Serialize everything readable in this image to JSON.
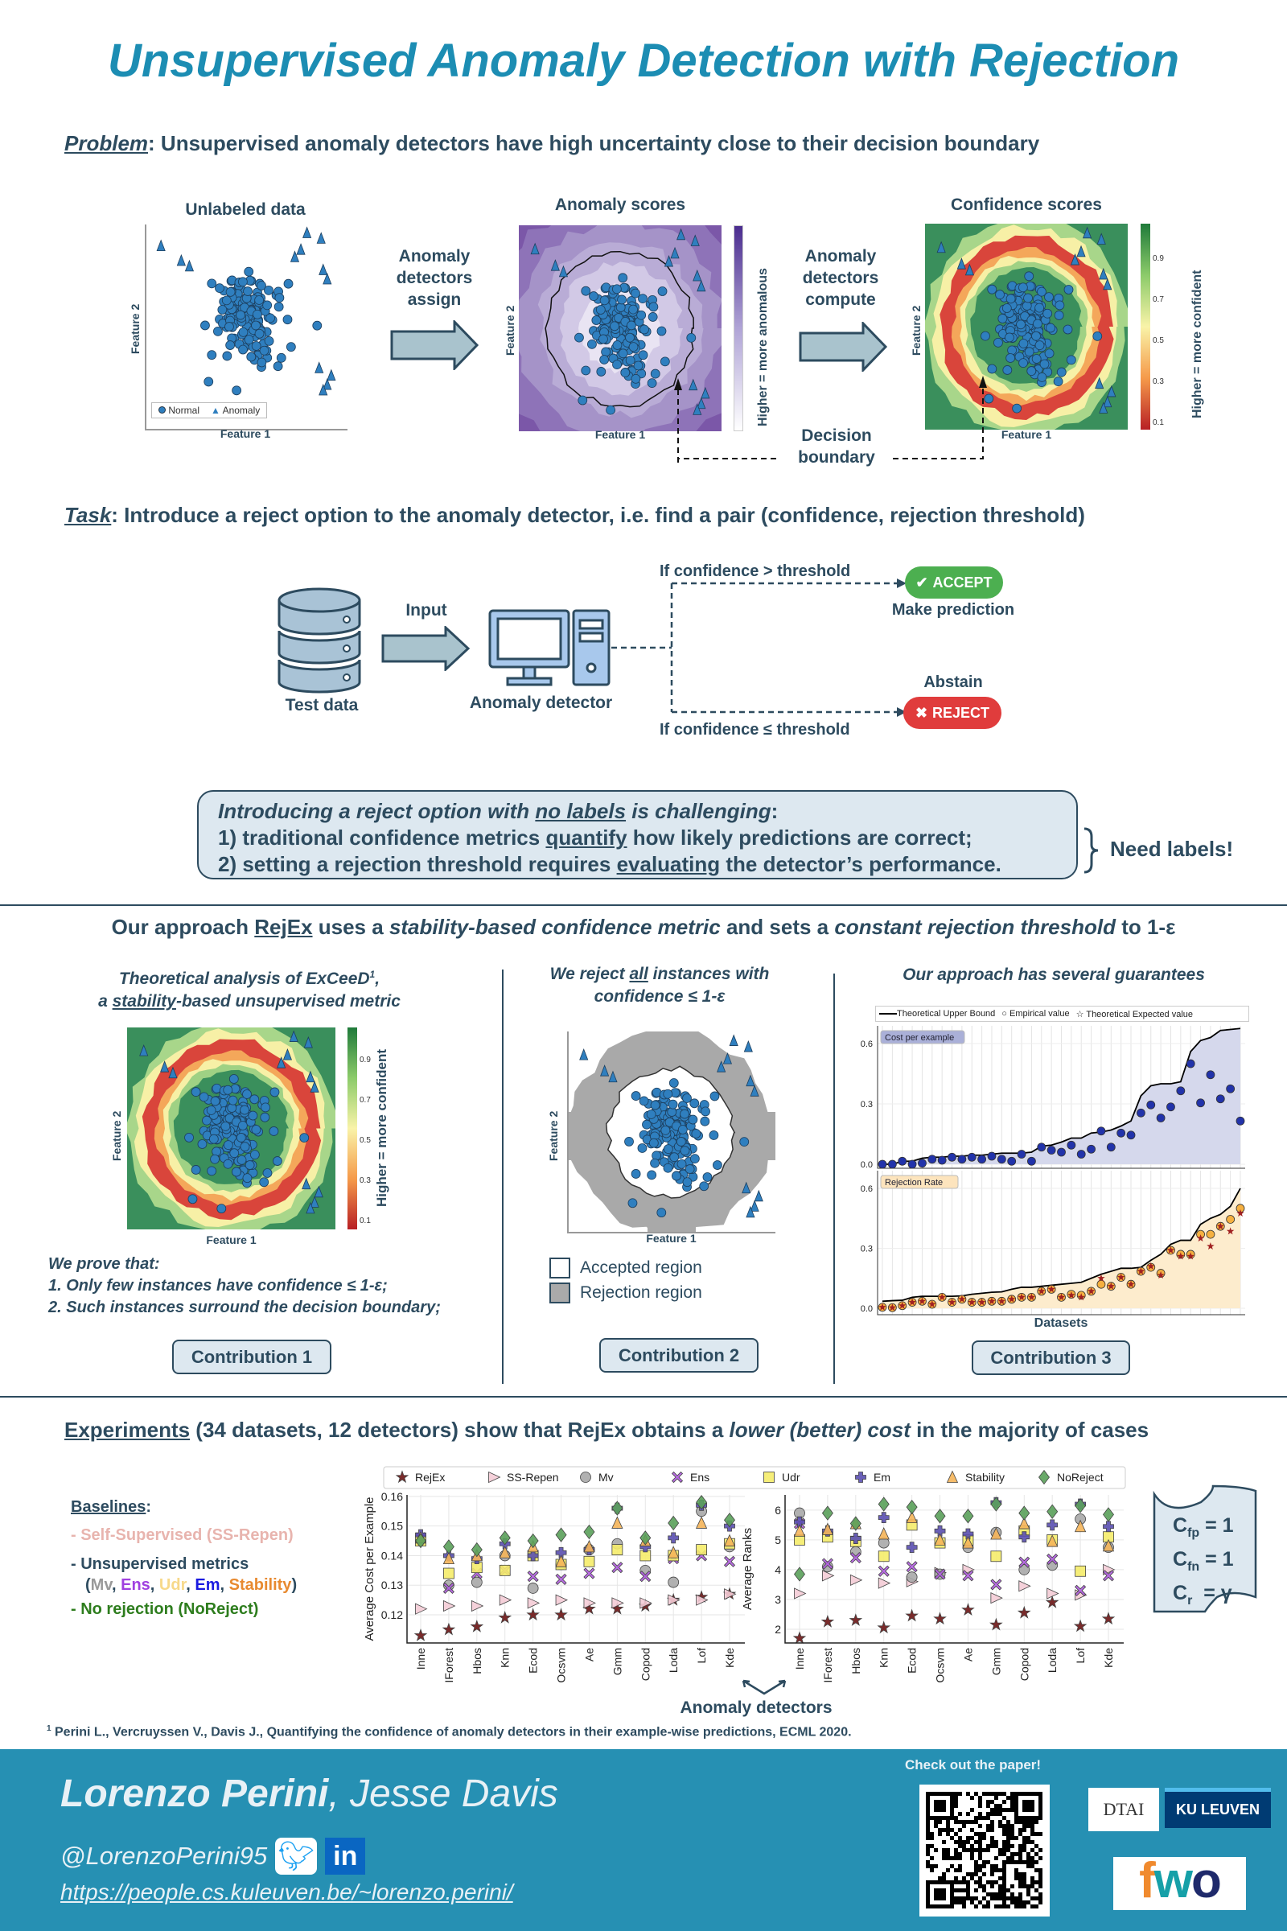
{
  "title": "Unsupervised Anomaly Detection with Rejection",
  "problem": {
    "label": "Problem",
    "text": ": Unsupervised anomaly detectors have high uncertainty close to their decision boundary"
  },
  "fig_unlabeled": {
    "title": "Unlabeled data",
    "xlabel": "Feature 1",
    "ylabel": "Feature 2",
    "legend": [
      "Normal",
      "Anomaly"
    ]
  },
  "arrow_assign": [
    "Anomaly",
    "detectors",
    "assign"
  ],
  "fig_scores": {
    "title": "Anomaly scores",
    "xlabel": "Feature 1",
    "ylabel": "Feature 2",
    "colorbar_label": "Higher = more anomalous"
  },
  "arrow_compute": [
    "Anomaly",
    "detectors",
    "compute"
  ],
  "fig_confidence": {
    "title": "Confidence scores",
    "xlabel": "Feature 1",
    "ylabel": "Feature 2",
    "colorbar_label": "Higher = more confident",
    "colorbar_ticks": [
      "0.9",
      "0.7",
      "0.5",
      "0.3",
      "0.1"
    ]
  },
  "decision_boundary": [
    "Decision",
    "boundary"
  ],
  "task": {
    "label": "Task",
    "text": ": Introduce a reject option to the anomaly detector, i.e. find a pair (confidence, rejection threshold)"
  },
  "diagram": {
    "test_data": "Test data",
    "input": "Input",
    "detector": "Anomaly detector",
    "cond_accept": "If confidence > threshold",
    "accept": "ACCEPT",
    "accept_note": "Make prediction",
    "reject_note": "Abstain",
    "reject": "REJECT",
    "cond_reject": "If confidence ≤ threshold",
    "accept_color": "#4caf50",
    "reject_color": "#e03c3c"
  },
  "challenge": {
    "line1": [
      "Introducing a reject option with ",
      "no labels",
      " is challenging",
      ":"
    ],
    "line2": [
      "1) traditional confidence metrics ",
      "quantify",
      " how likely predictions are correct;"
    ],
    "line3": [
      "2) setting a rejection threshold requires ",
      "evaluating",
      " the detector’s performance."
    ],
    "need_labels": "Need labels!"
  },
  "approach": [
    "Our approach ",
    "RejEx",
    " uses a ",
    "stability-based confidence metric",
    " and sets a ",
    "constant rejection threshold",
    " to 1-ε"
  ],
  "col1": {
    "title1": [
      "Theoretical analysis of ExCeeD",
      "1",
      ","
    ],
    "title2": [
      "a ",
      "stability",
      "-based unsupervised metric"
    ],
    "xlabel": "Feature 1",
    "ylabel": "Feature 2",
    "colorbar_label": "Higher = more confident",
    "colorbar_ticks": [
      "0.9",
      "0.7",
      "0.5",
      "0.3",
      "0.1"
    ],
    "prove": "We prove that:",
    "points": [
      "1. Only few instances have confidence ≤ 1-ε;",
      "2. Such instances surround the decision boundary;"
    ],
    "button": "Contribution 1"
  },
  "col2": {
    "title1": [
      "We reject ",
      "all",
      " instances with"
    ],
    "title2": "confidence ≤ 1-ε",
    "xlabel": "Feature 1",
    "ylabel": "Feature 2",
    "legend": [
      "Accepted region",
      "Rejection region"
    ],
    "button": "Contribution 2"
  },
  "col3": {
    "title": "Our approach has several guarantees",
    "legend": [
      "Theoretical Upper Bound",
      "Empirical value",
      "Theoretical Expected value"
    ],
    "xlabel": "Datasets",
    "button": "Contribution 3"
  },
  "experiments": {
    "headline": [
      "Experiments",
      " (34 datasets, 12 detectors) show that RejEx obtains a ",
      "lower (better) cost",
      " in the majority of cases"
    ],
    "baselines_label": "Baselines",
    "baselines": [
      {
        "text": "- Self-Supervised (SS-Repen)",
        "color": "#e8b4ae"
      },
      {
        "text": "- Unsupervised metrics",
        "color": "#2d4b5f"
      },
      {
        "text": "- No rejection (NoReject)",
        "color": "#2e7d1e"
      }
    ],
    "metrics": [
      {
        "text": "Mv",
        "color": "#999999"
      },
      {
        "text": "Ens",
        "color": "#a040e0"
      },
      {
        "text": "Udr",
        "color": "#f7d98a"
      },
      {
        "text": "Em",
        "color": "#1a1ae0"
      },
      {
        "text": "Stability",
        "color": "#e88a30"
      }
    ],
    "xlabel": "Anomaly detectors",
    "costs": [
      {
        "sym": "C",
        "sub": "fp",
        "val": "= 1"
      },
      {
        "sym": "C",
        "sub": "fn",
        "val": "= 1"
      },
      {
        "sym": "C",
        "sub": "r",
        "val": "= γ"
      }
    ]
  },
  "footnote": {
    "mark": "1",
    "text": " Perini L., Vercruyssen V., Davis J., Quantifying the confidence of anomaly detectors in their example-wise predictions, ECML 2020."
  },
  "footer": {
    "author1": "Lorenzo Perini",
    "author2": ", Jesse Davis",
    "handle": "@LorenzoPerini95",
    "url": "https://people.cs.kuleuven.be/~lorenzo.perini/",
    "paper_cta": "Check out the paper!",
    "logos": [
      "DTAI",
      "KU LEUVEN",
      "fwo"
    ]
  },
  "chart_data": [
    {
      "type": "line+scatter",
      "panel_label": "Cost per example",
      "ylim": [
        0,
        0.68
      ],
      "yticks": [
        "0.0",
        "0.3",
        "0.6"
      ],
      "series": [
        {
          "name": "Theoretical Upper Bound",
          "values": [
            0,
            0,
            0.015,
            0.015,
            0.03,
            0.035,
            0.035,
            0.04,
            0.04,
            0.045,
            0.045,
            0.05,
            0.055,
            0.055,
            0.055,
            0.06,
            0.09,
            0.095,
            0.11,
            0.13,
            0.13,
            0.155,
            0.16,
            0.17,
            0.19,
            0.215,
            0.34,
            0.39,
            0.4,
            0.4,
            0.41,
            0.56,
            0.615,
            0.63,
            0.665,
            0.67,
            0.675
          ]
        },
        {
          "name": "Empirical value",
          "values": [
            0,
            0,
            0.015,
            0,
            0.005,
            0.025,
            0.02,
            0.035,
            0.025,
            0.035,
            0.025,
            0.04,
            0.025,
            0.015,
            0.05,
            0.015,
            0.085,
            0.07,
            0.06,
            0.095,
            0.05,
            0.075,
            0.165,
            0.085,
            0.155,
            0.145,
            0.255,
            0.295,
            0.23,
            0.285,
            0.365,
            0.5,
            0.305,
            0.445,
            0.325,
            0.375,
            0.215
          ]
        }
      ],
      "colors": {
        "area": "#d5d8ec",
        "point": "#2233aa",
        "label_bg": "#aab0d8"
      }
    },
    {
      "type": "line+scatter",
      "panel_label": "Rejection Rate",
      "ylim": [
        0,
        0.68
      ],
      "yticks": [
        "0.0",
        "0.3",
        "0.6"
      ],
      "xlabel": "Datasets",
      "series": [
        {
          "name": "Theoretical Upper Bound",
          "values": [
            0.035,
            0.038,
            0.04,
            0.055,
            0.06,
            0.06,
            0.06,
            0.06,
            0.062,
            0.07,
            0.075,
            0.08,
            0.082,
            0.095,
            0.105,
            0.105,
            0.11,
            0.115,
            0.12,
            0.125,
            0.13,
            0.15,
            0.17,
            0.185,
            0.2,
            0.2,
            0.205,
            0.24,
            0.27,
            0.32,
            0.34,
            0.34,
            0.42,
            0.45,
            0.47,
            0.51,
            0.6
          ]
        },
        {
          "name": "Empirical value",
          "values": [
            0.005,
            0.003,
            0.013,
            0.03,
            0.035,
            0.02,
            0.055,
            0.03,
            0.045,
            0.03,
            0.03,
            0.035,
            0.035,
            0.045,
            0.055,
            0.055,
            0.085,
            0.095,
            0.055,
            0.07,
            0.065,
            0.085,
            0.12,
            0.11,
            0.155,
            0.12,
            0.185,
            0.205,
            0.175,
            0.29,
            0.27,
            0.27,
            0.37,
            0.37,
            0.41,
            0.445,
            0.5
          ]
        },
        {
          "name": "Theoretical Expected value",
          "values": [
            0.005,
            0.003,
            0.013,
            0.03,
            0.035,
            0.02,
            0.055,
            0.03,
            0.045,
            0.03,
            0.03,
            0.035,
            0.035,
            0.045,
            0.055,
            0.055,
            0.085,
            0.095,
            0.055,
            0.065,
            0.055,
            0.085,
            0.15,
            0.11,
            0.155,
            0.12,
            0.185,
            0.21,
            0.165,
            0.29,
            0.26,
            0.26,
            0.35,
            0.31,
            0.41,
            0.385,
            0.475
          ]
        }
      ],
      "colors": {
        "area": "#fdeccd",
        "point": "#f5b040",
        "star": "#a02020",
        "label_bg": "#fde4bd"
      }
    },
    {
      "type": "scatter",
      "ylabel": "Average Cost per Example",
      "ylim": [
        0.1105,
        0.1605
      ],
      "yticks": [
        0.12,
        0.13,
        0.14,
        0.15,
        0.16
      ],
      "categories": [
        "Inne",
        "IForest",
        "Hbos",
        "Knn",
        "Ecod",
        "Ocsvm",
        "Ae",
        "Gmm",
        "Copod",
        "Loda",
        "Lof",
        "Kde"
      ],
      "series": [
        {
          "name": "RejEx",
          "marker": "star",
          "color": "#6b1414",
          "values": [
            0.113,
            0.115,
            0.116,
            0.119,
            0.12,
            0.12,
            0.122,
            0.122,
            0.123,
            0.125,
            0.126,
            0.127
          ]
        },
        {
          "name": "SS-Repen",
          "marker": "tri-right",
          "color": "#f4ccd6",
          "values": [
            0.122,
            0.123,
            0.123,
            0.125,
            0.124,
            0.125,
            0.124,
            0.124,
            0.124,
            0.125,
            0.125,
            0.127
          ]
        },
        {
          "name": "Mv",
          "marker": "circle",
          "color": "#a8a8a8",
          "values": [
            0.145,
            0.13,
            0.131,
            0.14,
            0.129,
            0.137,
            0.142,
            0.144,
            0.135,
            0.131,
            0.155,
            0.143
          ]
        },
        {
          "name": "Ens",
          "marker": "x",
          "color": "#b05ce0",
          "values": [
            0.146,
            0.129,
            0.134,
            0.135,
            0.133,
            0.132,
            0.134,
            0.136,
            0.133,
            0.139,
            0.14,
            0.138
          ]
        },
        {
          "name": "Udr",
          "marker": "square",
          "color": "#f5ec6a",
          "values": [
            0.145,
            0.134,
            0.136,
            0.135,
            0.14,
            0.137,
            0.138,
            0.142,
            0.14,
            0.14,
            0.142,
            0.144
          ]
        },
        {
          "name": "Em",
          "marker": "plus",
          "color": "#5a4fb0",
          "values": [
            0.147,
            0.14,
            0.139,
            0.144,
            0.14,
            0.141,
            0.142,
            0.156,
            0.143,
            0.146,
            0.157,
            0.15
          ]
        },
        {
          "name": "Stability",
          "marker": "tri-up",
          "color": "#f5b55a",
          "values": [
            0.146,
            0.139,
            0.14,
            0.141,
            0.143,
            0.138,
            0.143,
            0.151,
            0.145,
            0.141,
            0.151,
            0.145
          ]
        },
        {
          "name": "NoReject",
          "marker": "diamond",
          "color": "#5aa05a",
          "values": [
            0.145,
            0.143,
            0.142,
            0.146,
            0.145,
            0.147,
            0.148,
            0.156,
            0.146,
            0.151,
            0.158,
            0.152
          ]
        }
      ]
    },
    {
      "type": "scatter",
      "ylabel": "Average Ranks",
      "ylim": [
        1.54,
        6.51
      ],
      "yticks": [
        2,
        3,
        4,
        5,
        6
      ],
      "categories": [
        "Inne",
        "IForest",
        "Hbos",
        "Knn",
        "Ecod",
        "Ocsvm",
        "Ae",
        "Gmm",
        "Copod",
        "Loda",
        "Lof",
        "Kde"
      ],
      "series": [
        {
          "name": "RejEx",
          "marker": "star",
          "color": "#6b1414",
          "values": [
            1.7,
            2.25,
            2.3,
            2.05,
            2.45,
            2.35,
            2.65,
            2.15,
            2.55,
            2.9,
            2.1,
            2.35
          ]
        },
        {
          "name": "SS-Repen",
          "marker": "tri-right",
          "color": "#f4ccd6",
          "values": [
            3.2,
            3.8,
            3.65,
            3.55,
            3.6,
            3.9,
            4.0,
            3.05,
            3.45,
            3.2,
            3.15,
            4.0
          ]
        },
        {
          "name": "Mv",
          "marker": "circle",
          "color": "#a8a8a8",
          "values": [
            5.9,
            4.1,
            4.6,
            4.9,
            3.75,
            3.85,
            4.75,
            5.25,
            4.0,
            4.15,
            5.7,
            4.75
          ]
        },
        {
          "name": "Ens",
          "marker": "x",
          "color": "#b05ce0",
          "values": [
            5.55,
            4.2,
            4.4,
            3.95,
            4.1,
            3.85,
            3.8,
            3.5,
            4.25,
            4.35,
            3.3,
            3.8
          ]
        },
        {
          "name": "Udr",
          "marker": "square",
          "color": "#f5ec6a",
          "values": [
            5.0,
            5.1,
            4.95,
            4.45,
            5.5,
            4.9,
            5.0,
            4.45,
            5.3,
            5.0,
            3.95,
            5.1
          ]
        },
        {
          "name": "Em",
          "marker": "plus",
          "color": "#5a4fb0",
          "values": [
            5.6,
            5.3,
            5.05,
            5.75,
            4.75,
            5.3,
            5.2,
            6.25,
            5.1,
            5.5,
            6.2,
            5.45
          ]
        },
        {
          "name": "Stability",
          "marker": "tri-up",
          "color": "#f5b55a",
          "values": [
            5.3,
            5.35,
            5.55,
            5.2,
            5.75,
            5.0,
            4.9,
            5.2,
            5.55,
            4.95,
            5.45,
            4.8
          ]
        },
        {
          "name": "NoReject",
          "marker": "diamond",
          "color": "#5aa05a",
          "values": [
            3.85,
            5.9,
            5.55,
            6.2,
            6.1,
            5.8,
            5.8,
            6.2,
            5.9,
            5.95,
            6.15,
            5.85
          ]
        }
      ]
    }
  ]
}
